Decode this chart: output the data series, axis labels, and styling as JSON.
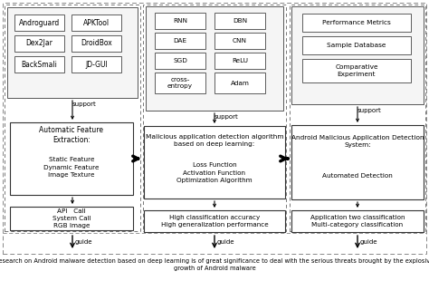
{
  "bg_color": "#ffffff",
  "text_color": "#000000",
  "footer_text": "Research on Android malware detection based on deep learning is of great significance to deal with the serious threats brought by the explosive\ngrowth of Android malware",
  "col1_tools": [
    [
      "Androguard",
      "APKTool"
    ],
    [
      "Dex2Jar",
      "DroidBox"
    ],
    [
      "BackSmali",
      "JD-GUI"
    ]
  ],
  "col2_tools": [
    [
      "RNN",
      "DBN"
    ],
    [
      "DAE",
      "CNN"
    ],
    [
      "SGD",
      "ReLU"
    ],
    [
      "cross-\nentropy",
      "Adam"
    ]
  ],
  "col3_tools": [
    "Performance Metrics",
    "Sample Database",
    "Comparative\nExperiment"
  ],
  "col1_mid_title": "Automatic Feature\nExtraction:",
  "col1_mid_body": "Static Feature\nDynamic Feature\nImage Texture",
  "col2_mid_title": "Malicious application detection algorithm\nbased on deep learning:",
  "col2_mid_body": "Loss Function\nActivation Function\nOptimization Algorithm",
  "col3_mid_title": "Android Malicious Application Detection\nSystem:",
  "col3_mid_body": "Automated Detection",
  "col1_bot": "API   Call\nSystem Call\nRGB Image",
  "col2_bot": "High classification accuracy\nHigh generalization performance",
  "col3_bot": "Application two classification\nMulti-category classification"
}
